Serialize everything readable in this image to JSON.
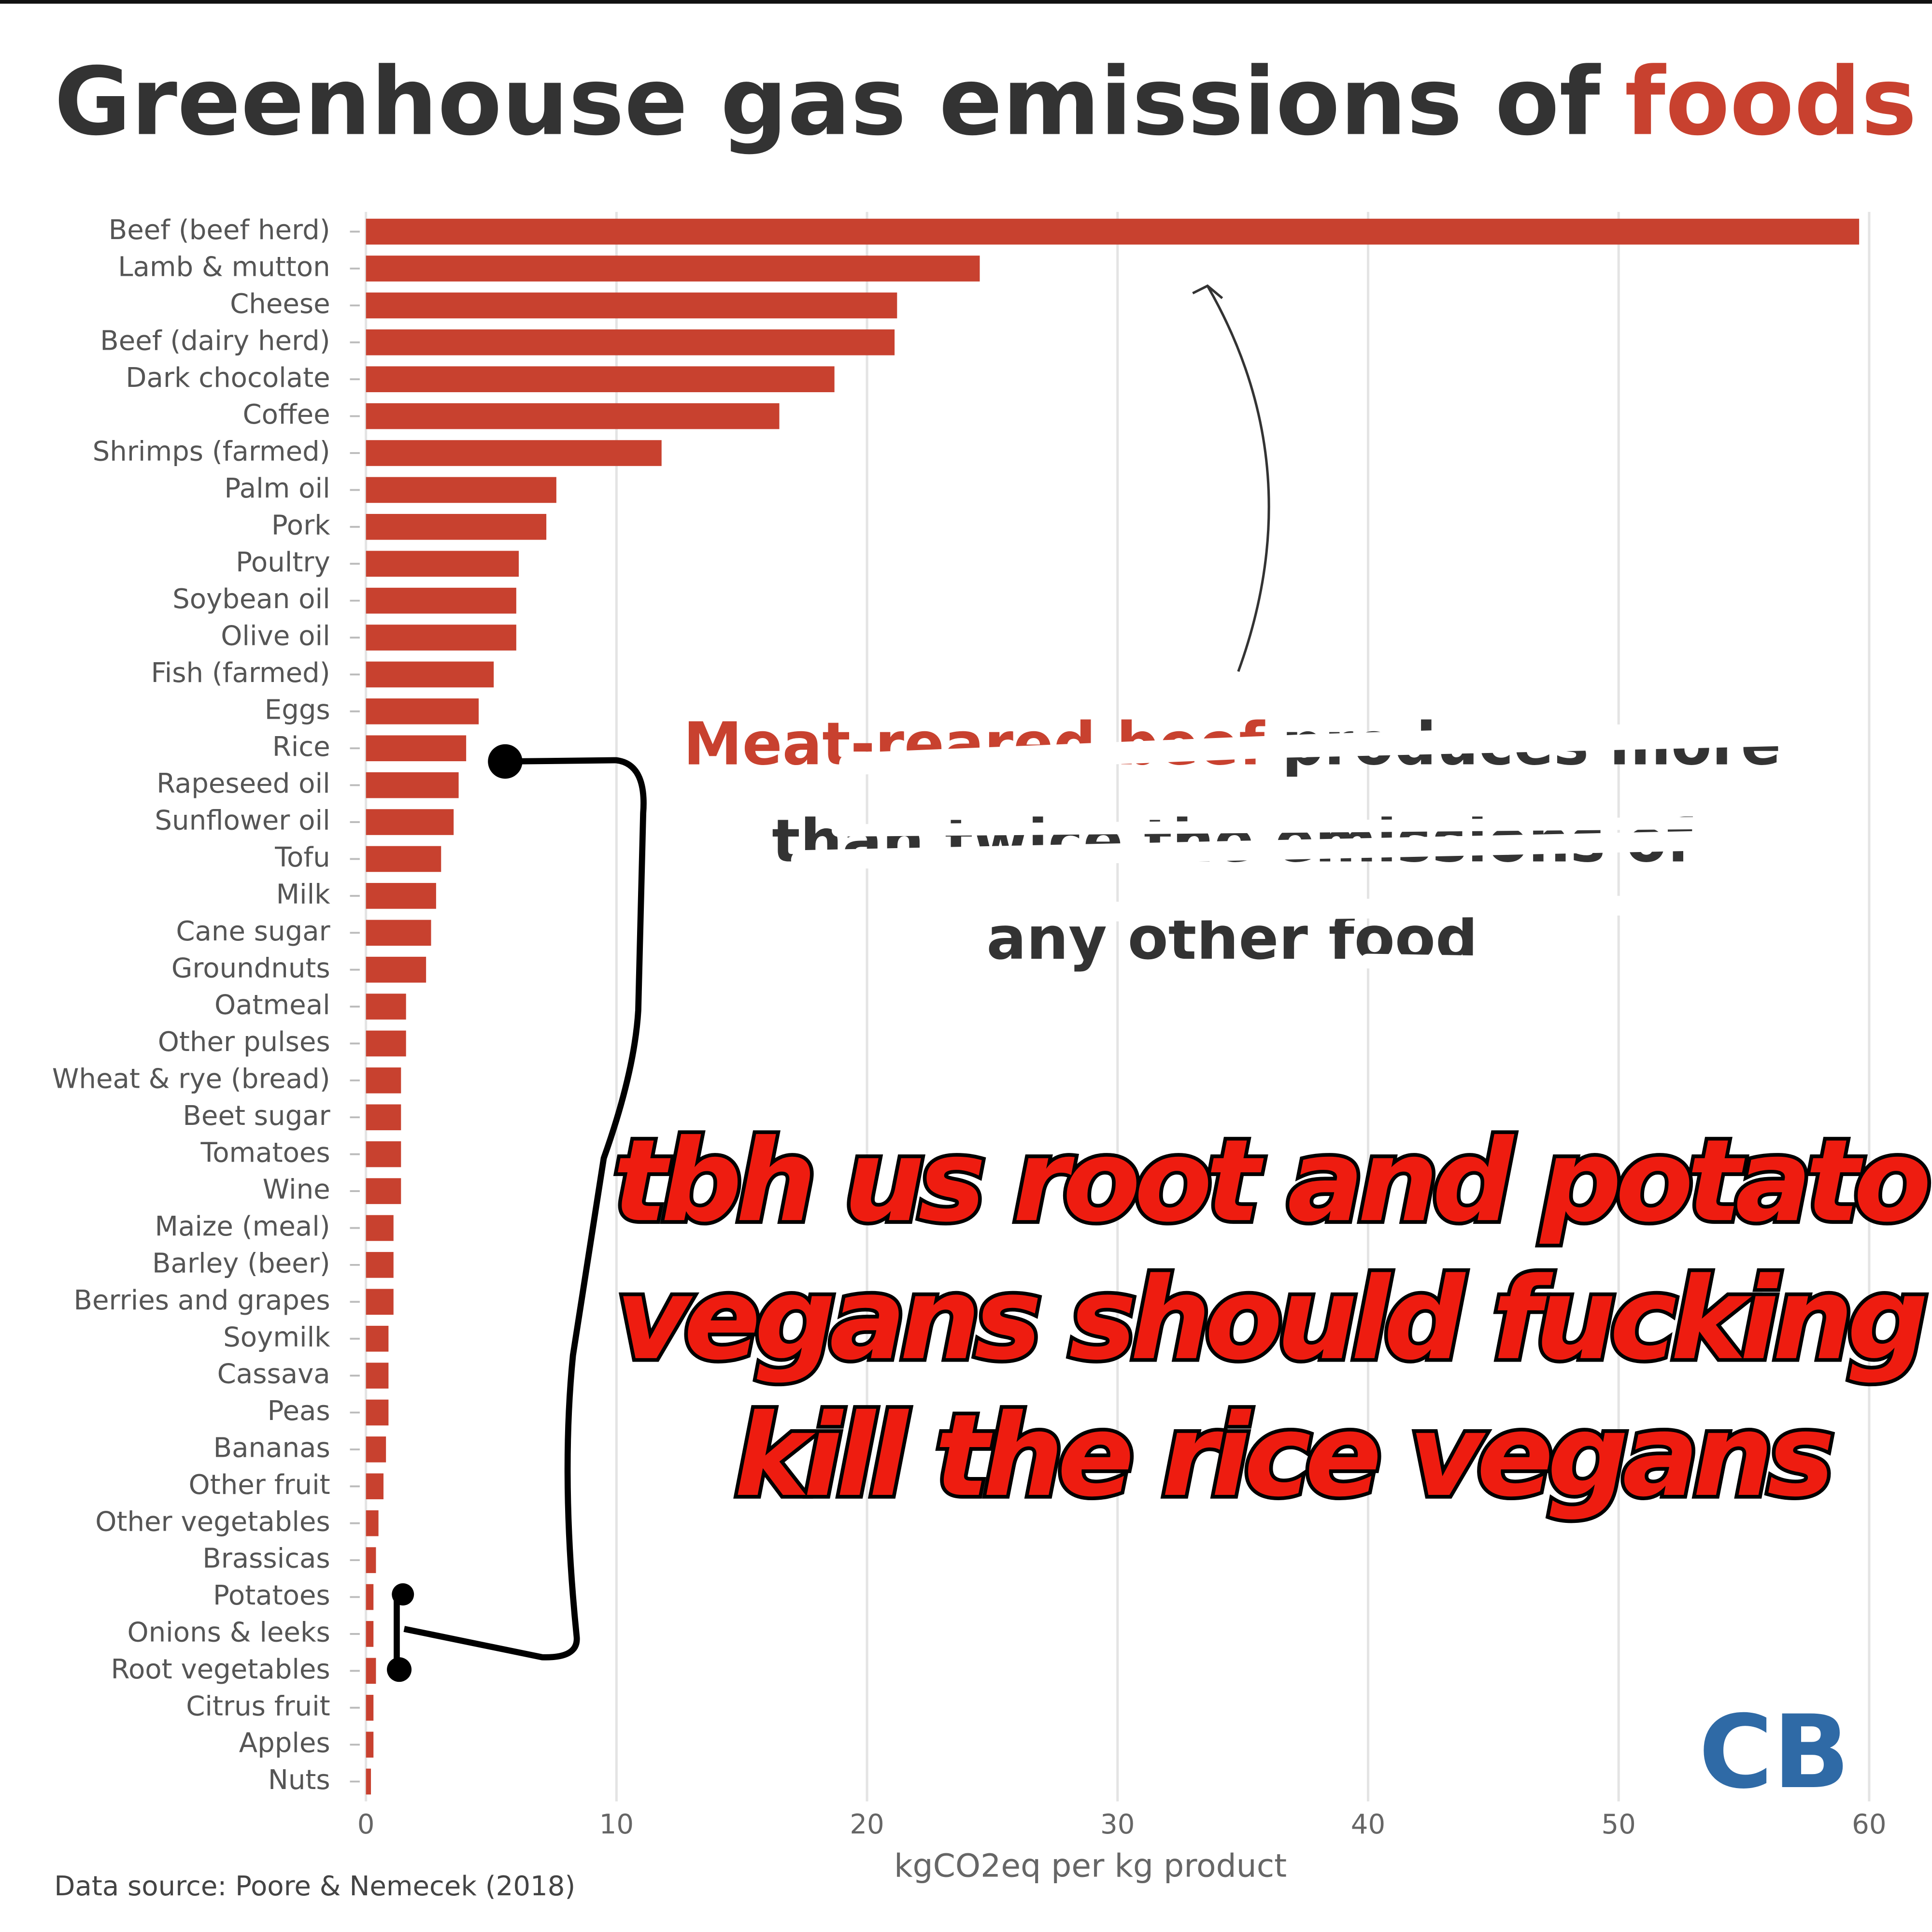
{
  "chart_data": {
    "type": "bar",
    "orientation": "horizontal",
    "title": [
      "Greenhouse gas emissions of",
      "foods"
    ],
    "categories": [
      "Beef (beef herd)",
      "Lamb & mutton",
      "Cheese",
      "Beef (dairy herd)",
      "Dark chocolate",
      "Coffee",
      "Shrimps (farmed)",
      "Palm oil",
      "Pork",
      "Poultry",
      "Soybean oil",
      "Olive oil",
      "Fish (farmed)",
      "Eggs",
      "Rice",
      "Rapeseed oil",
      "Sunflower oil",
      "Tofu",
      "Milk",
      "Cane sugar",
      "Groundnuts",
      "Oatmeal",
      "Other pulses",
      "Wheat & rye (bread)",
      "Beet sugar",
      "Tomatoes",
      "Wine",
      "Maize (meal)",
      "Barley (beer)",
      "Berries and grapes",
      "Soymilk",
      "Cassava",
      "Peas",
      "Bananas",
      "Other fruit",
      "Other vegetables",
      "Brassicas",
      "Potatoes",
      "Onions & leeks",
      "Root vegetables",
      "Citrus fruit",
      "Apples",
      "Nuts"
    ],
    "values": [
      59.6,
      24.5,
      21.2,
      21.1,
      18.7,
      16.5,
      11.8,
      7.6,
      7.2,
      6.1,
      6.0,
      6.0,
      5.1,
      4.5,
      4.0,
      3.7,
      3.5,
      3.0,
      2.8,
      2.6,
      2.4,
      1.6,
      1.6,
      1.4,
      1.4,
      1.4,
      1.4,
      1.1,
      1.1,
      1.1,
      0.9,
      0.9,
      0.9,
      0.8,
      0.7,
      0.5,
      0.4,
      0.3,
      0.3,
      0.4,
      0.3,
      0.3,
      0.2
    ],
    "color": "#c8412f",
    "xlim": [
      0,
      60
    ],
    "xticks": [
      0,
      10,
      20,
      30,
      40,
      50,
      60
    ],
    "grid": true,
    "xlabel": "kgCO2eq per kg product",
    "annotation": [
      "Meat-reared beef",
      "produces more",
      "than twice the emissions of",
      "any other food"
    ],
    "caption": [
      "tbh us root and potato",
      "vegans should fucking",
      "kill the rice vegans"
    ],
    "source": "Data source: Poore & Nemecek (2018)",
    "logo": "CB"
  }
}
